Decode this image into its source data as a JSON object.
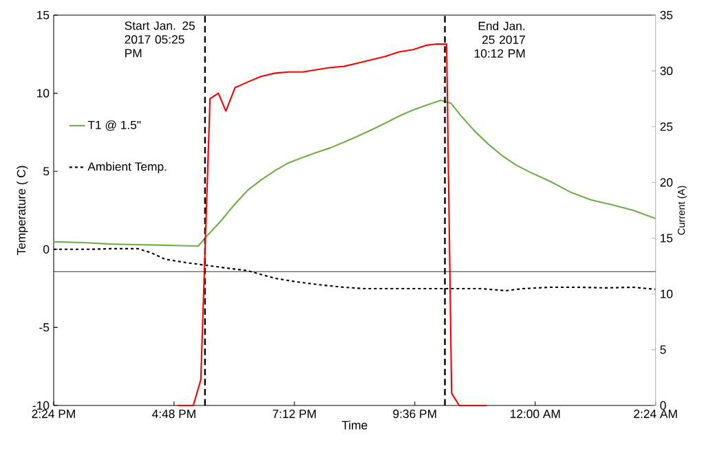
{
  "chart_data": {
    "type": "line",
    "xlabel": "Time",
    "ylabel": "Temperature ( C)",
    "y2label": "Current (A)",
    "xlim": [
      "2017-01-25T14:24",
      "2017-01-26T02:24"
    ],
    "xticks": [
      {
        "value": "2017-01-25T14:24",
        "label": "2:24 PM"
      },
      {
        "value": "2017-01-25T16:48",
        "label": "4:48 PM"
      },
      {
        "value": "2017-01-25T19:12",
        "label": "7:12 PM"
      },
      {
        "value": "2017-01-25T21:36",
        "label": "9:36 PM"
      },
      {
        "value": "2017-01-26T00:00",
        "label": "12:00 AM"
      },
      {
        "value": "2017-01-26T02:24",
        "label": "2:24 AM"
      }
    ],
    "ylim": [
      -10,
      15
    ],
    "yticks": [
      -10,
      -5,
      0,
      5,
      10,
      15
    ],
    "y2lim": [
      0,
      35
    ],
    "y2ticks": [
      0,
      5,
      10,
      15,
      20,
      25,
      30,
      35
    ],
    "legend": "top left",
    "grid": false,
    "marker": "none",
    "series": [
      {
        "name": "T1 @ 1.5\"",
        "color": "#70ad47",
        "line_style": "solid",
        "x": [
          "2017-01-25T14:24",
          "2017-01-25T14:59",
          "2017-01-25T15:32",
          "2017-01-25T16:05",
          "2017-01-25T16:37",
          "2017-01-25T17:17",
          "2017-01-25T17:26",
          "2017-01-25T17:43",
          "2017-01-25T18:00",
          "2017-01-25T18:16",
          "2017-01-25T18:32",
          "2017-01-25T18:49",
          "2017-01-25T19:05",
          "2017-01-25T19:22",
          "2017-01-25T19:38",
          "2017-01-25T19:55",
          "2017-01-25T20:11",
          "2017-01-25T20:28",
          "2017-01-25T20:44",
          "2017-01-25T21:01",
          "2017-01-25T21:17",
          "2017-01-25T21:34",
          "2017-01-25T21:50",
          "2017-01-25T22:07",
          "2017-01-25T22:19",
          "2017-01-25T22:31",
          "2017-01-25T22:47",
          "2017-01-25T23:04",
          "2017-01-25T23:20",
          "2017-01-25T23:37",
          "2017-01-25T23:53",
          "2017-01-26T00:18",
          "2017-01-26T00:43",
          "2017-01-26T01:07",
          "2017-01-26T01:32",
          "2017-01-26T01:57",
          "2017-01-26T02:24"
        ],
        "values": [
          0.48,
          0.43,
          0.34,
          0.3,
          0.26,
          0.21,
          0.78,
          1.75,
          2.85,
          3.78,
          4.44,
          5.05,
          5.54,
          5.89,
          6.2,
          6.5,
          6.86,
          7.25,
          7.65,
          8.09,
          8.53,
          8.93,
          9.23,
          9.54,
          9.37,
          8.57,
          7.6,
          6.73,
          6.02,
          5.4,
          4.96,
          4.35,
          3.64,
          3.16,
          2.85,
          2.5,
          1.97
        ]
      },
      {
        "name": "Ambient Temp.",
        "color": "#000000",
        "line_style": "dashed",
        "x": [
          "2017-01-25T14:24",
          "2017-01-25T15:07",
          "2017-01-25T15:32",
          "2017-01-25T16:05",
          "2017-01-25T16:21",
          "2017-01-25T16:37",
          "2017-01-25T17:02",
          "2017-01-25T17:26",
          "2017-01-25T17:51",
          "2017-01-25T18:16",
          "2017-01-25T18:49",
          "2017-01-25T19:14",
          "2017-01-25T19:47",
          "2017-01-25T20:11",
          "2017-01-25T20:36",
          "2017-01-25T21:34",
          "2017-01-25T22:56",
          "2017-01-25T23:25",
          "2017-01-25T23:45",
          "2017-01-26T00:18",
          "2017-01-26T00:51",
          "2017-01-26T01:24",
          "2017-01-26T01:57",
          "2017-01-26T02:24"
        ],
        "values": [
          0.0,
          0.0,
          0.04,
          0.04,
          -0.23,
          -0.63,
          -0.85,
          -1.02,
          -1.2,
          -1.37,
          -1.86,
          -2.08,
          -2.3,
          -2.43,
          -2.52,
          -2.52,
          -2.52,
          -2.65,
          -2.52,
          -2.43,
          -2.43,
          -2.47,
          -2.43,
          -2.56
        ]
      },
      {
        "color": "#ff0000",
        "line_style": "solid",
        "axis": "y2",
        "x": [
          "2017-01-25T16:52",
          "2017-01-25T17:11",
          "2017-01-25T17:20",
          "2017-01-25T17:31",
          "2017-01-25T17:41",
          "2017-01-25T17:50",
          "2017-01-25T18:01",
          "2017-01-25T18:16",
          "2017-01-25T18:32",
          "2017-01-25T18:49",
          "2017-01-25T19:05",
          "2017-01-25T19:22",
          "2017-01-25T19:38",
          "2017-01-25T19:55",
          "2017-01-25T20:11",
          "2017-01-25T20:28",
          "2017-01-25T20:44",
          "2017-01-25T21:01",
          "2017-01-25T21:17",
          "2017-01-25T21:34",
          "2017-01-25T21:50",
          "2017-01-25T22:01",
          "2017-01-25T22:14",
          "2017-01-25T22:20",
          "2017-01-25T22:29",
          "2017-01-25T23:02"
        ],
        "values": [
          0,
          0,
          2.3,
          27.5,
          28.0,
          26.4,
          28.5,
          29.0,
          29.5,
          29.8,
          29.9,
          29.9,
          30.1,
          30.3,
          30.4,
          30.7,
          31.0,
          31.3,
          31.7,
          31.9,
          32.3,
          32.4,
          32.4,
          1.1,
          0,
          0
        ]
      }
    ],
    "ref_lines": [
      {
        "axis": "x",
        "value": "2017-01-25T17:25",
        "label": "Start Jan. 25 2017 05:25 PM",
        "color": "#000000",
        "line_style": "dashed"
      },
      {
        "axis": "x",
        "value": "2017-01-25T22:12",
        "label": "End Jan. 25 2017 10:12 PM",
        "color": "#000000",
        "line_style": "dashed"
      },
      {
        "axis": "y2",
        "value": 12,
        "color": "#000000",
        "line_style": "solid"
      }
    ]
  }
}
